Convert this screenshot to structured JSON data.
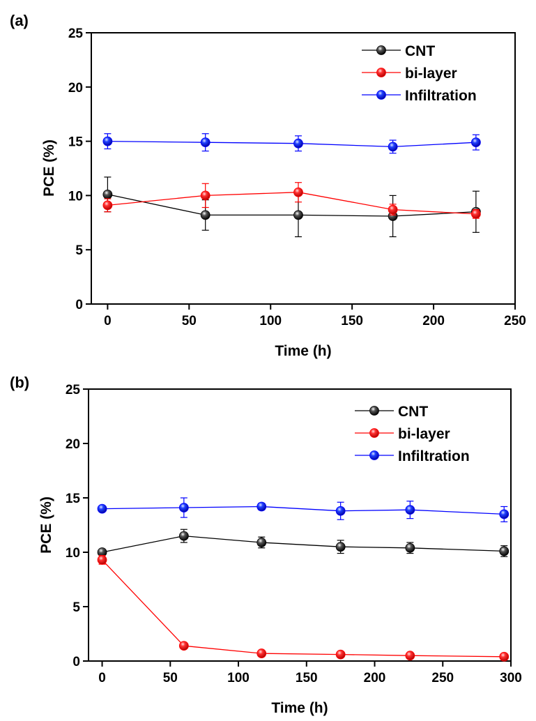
{
  "chart_data": [
    {
      "panel": "(a)",
      "type": "line",
      "xlabel": "Time (h)",
      "ylabel": "PCE (%)",
      "xlim": [
        -10,
        250
      ],
      "ylim": [
        0,
        25
      ],
      "xticks": [
        0,
        50,
        100,
        150,
        200,
        250
      ],
      "yticks": [
        0,
        5,
        10,
        15,
        20,
        25
      ],
      "grid": false,
      "legend_position": "top-right",
      "series": [
        {
          "name": "CNT",
          "color": "#000000",
          "x": [
            0,
            60,
            117,
            175,
            226
          ],
          "y": [
            10.1,
            8.2,
            8.2,
            8.1,
            8.5
          ],
          "err": [
            1.6,
            1.4,
            2.0,
            1.9,
            1.9
          ]
        },
        {
          "name": "bi-layer",
          "color": "#ff0000",
          "x": [
            0,
            60,
            117,
            175,
            226
          ],
          "y": [
            9.1,
            10.0,
            10.3,
            8.7,
            8.3
          ],
          "err": [
            0.6,
            1.1,
            0.9,
            0.5,
            0.4
          ]
        },
        {
          "name": "Infiltration",
          "color": "#0000ff",
          "x": [
            0,
            60,
            117,
            175,
            226
          ],
          "y": [
            15.0,
            14.9,
            14.8,
            14.5,
            14.9
          ],
          "err": [
            0.7,
            0.8,
            0.7,
            0.6,
            0.7
          ]
        }
      ]
    },
    {
      "panel": "(b)",
      "type": "line",
      "xlabel": "Time (h)",
      "ylabel": "PCE (%)",
      "xlim": [
        -10,
        300
      ],
      "ylim": [
        0,
        25
      ],
      "xticks": [
        0,
        50,
        100,
        150,
        200,
        250,
        300
      ],
      "yticks": [
        0,
        5,
        10,
        15,
        20,
        25
      ],
      "grid": false,
      "legend_position": "top-right",
      "series": [
        {
          "name": "CNT",
          "color": "#000000",
          "x": [
            0,
            60,
            117,
            175,
            226,
            295
          ],
          "y": [
            10.0,
            11.5,
            10.9,
            10.5,
            10.4,
            10.1
          ],
          "err": [
            0.0,
            0.6,
            0.5,
            0.6,
            0.5,
            0.5
          ]
        },
        {
          "name": "bi-layer",
          "color": "#ff0000",
          "x": [
            0,
            60,
            117,
            175,
            226,
            295
          ],
          "y": [
            9.3,
            1.4,
            0.7,
            0.6,
            0.5,
            0.4
          ],
          "err": [
            0.4,
            0.1,
            0.1,
            0.1,
            0.1,
            0.1
          ]
        },
        {
          "name": "Infiltration",
          "color": "#0000ff",
          "x": [
            0,
            60,
            117,
            175,
            226,
            295
          ],
          "y": [
            14.0,
            14.1,
            14.2,
            13.8,
            13.9,
            13.5
          ],
          "err": [
            0.0,
            0.9,
            0.3,
            0.8,
            0.8,
            0.7
          ]
        }
      ]
    }
  ]
}
